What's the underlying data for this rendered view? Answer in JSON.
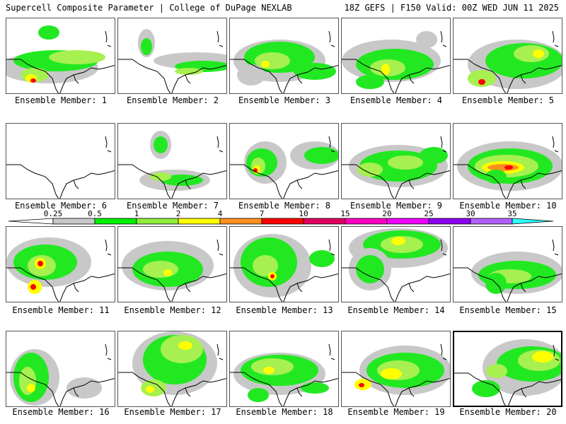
{
  "header": {
    "left": "Supercell Composite Parameter | College of DuPage NEXLAB",
    "right": "18Z GEFS | F150 Valid: 00Z WED JUN 11 2025"
  },
  "members": [
    {
      "label": "Ensemble Member: 1"
    },
    {
      "label": "Ensemble Member: 2"
    },
    {
      "label": "Ensemble Member: 3"
    },
    {
      "label": "Ensemble Member: 4"
    },
    {
      "label": "Ensemble Member: 5"
    },
    {
      "label": "Ensemble Member: 6"
    },
    {
      "label": "Ensemble Member: 7"
    },
    {
      "label": "Ensemble Member: 8"
    },
    {
      "label": "Ensemble Member: 9"
    },
    {
      "label": "Ensemble Member: 10"
    },
    {
      "label": "Ensemble Member: 11"
    },
    {
      "label": "Ensemble Member: 12"
    },
    {
      "label": "Ensemble Member: 13"
    },
    {
      "label": "Ensemble Member: 14"
    },
    {
      "label": "Ensemble Member: 15"
    },
    {
      "label": "Ensemble Member: 16"
    },
    {
      "label": "Ensemble Member: 17"
    },
    {
      "label": "Ensemble Member: 18"
    },
    {
      "label": "Ensemble Member: 19"
    },
    {
      "label": "Ensemble Member: 20"
    }
  ],
  "colorbar": {
    "labels": [
      "0.25",
      "0.5",
      "1",
      "2",
      "4",
      "7",
      "10",
      "15",
      "20",
      "25",
      "30",
      "35"
    ],
    "colors": [
      "#c8c8c8",
      "#00f000",
      "#90ee40",
      "#ffff00",
      "#ff9020",
      "#ff0000",
      "#e00060",
      "#ff00c0",
      "#f000ff",
      "#8c00f0",
      "#b060ff",
      "#30ffff"
    ]
  },
  "fill_colors": {
    "gray": "#c8c8c8",
    "green": "#22e822",
    "lightgreen": "#a6f050",
    "yellow": "#ffff00",
    "orange": "#ff9020",
    "red": "#ff0000"
  }
}
